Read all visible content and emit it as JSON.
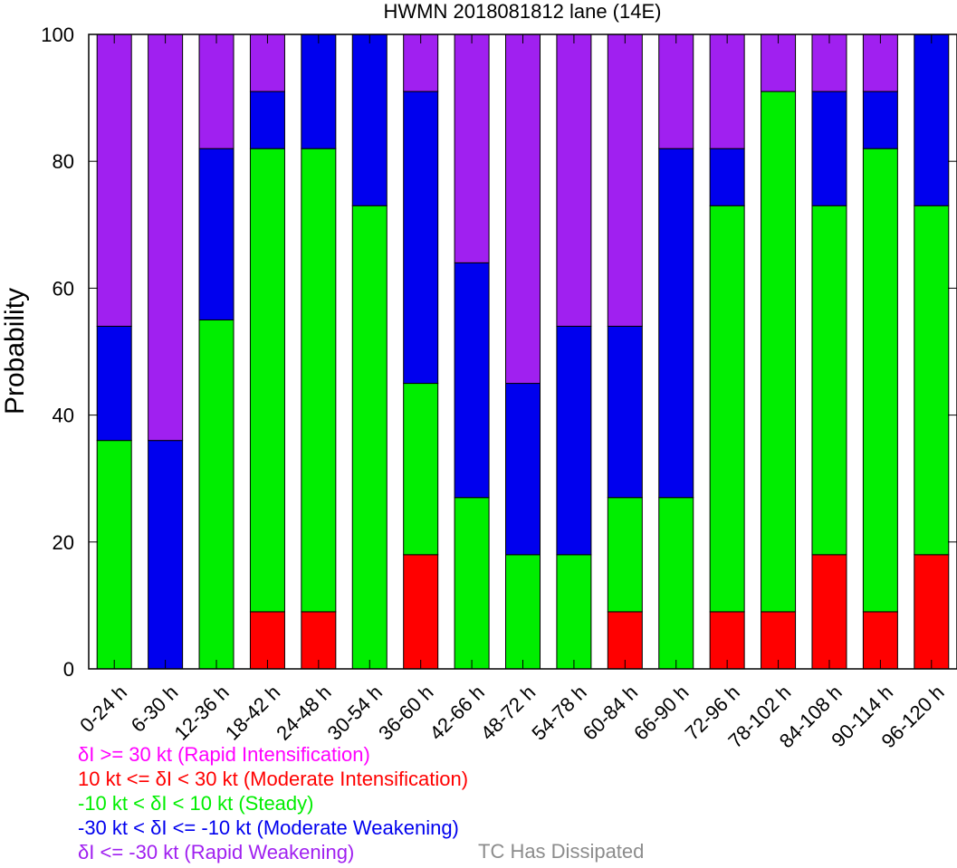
{
  "chart_data": {
    "type": "bar",
    "stacked": true,
    "title": "HWMN 2018081812 lane (14E)",
    "xlabel": "",
    "ylabel": "Probability",
    "ylim": [
      0,
      100
    ],
    "yticks": [
      0,
      20,
      40,
      60,
      80,
      100
    ],
    "grid": false,
    "categories": [
      "0-24 h",
      "6-30 h",
      "12-36 h",
      "18-42 h",
      "24-48 h",
      "30-54 h",
      "36-60 h",
      "42-66 h",
      "48-72 h",
      "54-78 h",
      "60-84 h",
      "66-90 h",
      "72-96 h",
      "78-102 h",
      "84-108 h",
      "90-114 h",
      "96-120 h"
    ],
    "series": [
      {
        "name": "10 kt <= δI < 30 kt (Moderate Intensification)",
        "color": "#ff0000",
        "values": [
          0,
          0,
          0,
          9,
          9,
          0,
          18,
          0,
          0,
          0,
          9,
          0,
          9,
          9,
          18,
          9,
          18
        ]
      },
      {
        "name": "-10 kt < δI < 10 kt (Steady)",
        "color": "#00ee00",
        "values": [
          36,
          0,
          55,
          73,
          73,
          73,
          27,
          27,
          18,
          18,
          18,
          27,
          64,
          82,
          55,
          73,
          55
        ]
      },
      {
        "name": "-30 kt < δI <= -10 kt (Moderate Weakening)",
        "color": "#0000ee",
        "values": [
          18,
          36,
          27,
          9,
          18,
          27,
          46,
          37,
          27,
          36,
          27,
          55,
          9,
          0,
          18,
          9,
          27
        ]
      },
      {
        "name": "δI <= -30 kt (Rapid Weakening)",
        "color": "#a020f0",
        "values": [
          46,
          64,
          18,
          9,
          0,
          0,
          9,
          36,
          55,
          46,
          46,
          18,
          18,
          9,
          9,
          9,
          0
        ]
      }
    ],
    "legend": {
      "placement": "bottom-left",
      "entries": [
        {
          "label": "δI >= 30 kt (Rapid Intensification)",
          "color": "#ff00ff"
        },
        {
          "label": "10 kt <= δI < 30 kt (Moderate Intensification)",
          "color": "#ff0000"
        },
        {
          "label": "-10 kt < δI < 10 kt (Steady)",
          "color": "#00ee00"
        },
        {
          "label": "-30 kt < δI <= -10 kt (Moderate Weakening)",
          "color": "#0000ee"
        },
        {
          "label": "δI <= -30 kt (Rapid Weakening)",
          "color": "#a020f0"
        }
      ],
      "dissipated_label": "TC Has Dissipated",
      "dissipated_color": "#8c8c8c"
    }
  }
}
